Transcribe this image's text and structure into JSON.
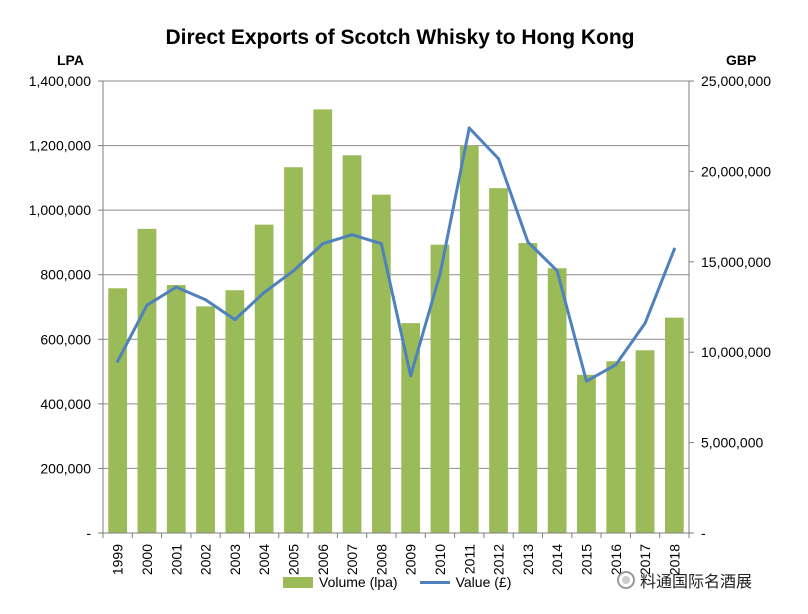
{
  "chart_data": {
    "type": "bar",
    "title": "Direct Exports of Scotch Whisky to Hong Kong",
    "left_axis_label": "LPA",
    "right_axis_label": "GBP",
    "categories": [
      "1999",
      "2000",
      "2001",
      "2002",
      "2003",
      "2004",
      "2005",
      "2006",
      "2007",
      "2008",
      "2009",
      "2010",
      "2011",
      "2012",
      "2013",
      "2014",
      "2015",
      "2016",
      "2017",
      "2018"
    ],
    "series": [
      {
        "name": "Volume (lpa)",
        "type": "bar",
        "axis": "left",
        "color": "#9bbb59",
        "values": [
          758000,
          942000,
          768000,
          702000,
          752000,
          955000,
          1133000,
          1312000,
          1170000,
          1048000,
          650000,
          893000,
          1200000,
          1068000,
          898000,
          820000,
          490000,
          532000,
          566000,
          667000
        ]
      },
      {
        "name": "Value (£)",
        "type": "line",
        "axis": "right",
        "color": "#4f81bd",
        "values": [
          9500000,
          12600000,
          13600000,
          12900000,
          11800000,
          13300000,
          14500000,
          16000000,
          16500000,
          16000000,
          8700000,
          14300000,
          22400000,
          20700000,
          16100000,
          14500000,
          8400000,
          9300000,
          11600000,
          15700000
        ]
      }
    ],
    "left_axis": {
      "min": 0,
      "max": 1400000,
      "tick_values": [
        0,
        200000,
        400000,
        600000,
        800000,
        1000000,
        1200000,
        1400000
      ],
      "tick_labels": [
        "-",
        "200,000",
        "400,000",
        "600,000",
        "800,000",
        "1,000,000",
        "1,200,000",
        "1,400,000"
      ]
    },
    "right_axis": {
      "min": 0,
      "max": 25000000,
      "tick_values": [
        0,
        5000000,
        10000000,
        15000000,
        20000000,
        25000000
      ],
      "tick_labels": [
        "-",
        "5,000,000",
        "10,000,000",
        "15,000,000",
        "20,000,000",
        "25,000,000"
      ]
    },
    "gridlines": true,
    "legend_position": "bottom"
  },
  "watermark": {
    "text": "料通国际名酒展"
  }
}
